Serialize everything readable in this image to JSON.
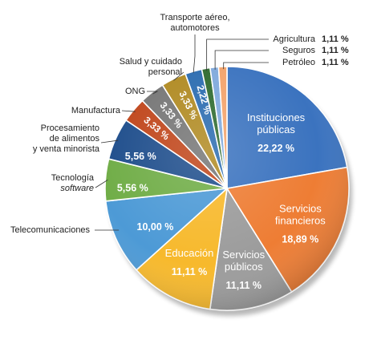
{
  "chart_data": {
    "type": "pie",
    "title": "",
    "slices": [
      {
        "label": "Instituciones públicas",
        "value_label": "22,22 %",
        "value": 22.22,
        "color": "#3b73bf"
      },
      {
        "label": "Servicios financieros",
        "value_label": "18,89 %",
        "value": 18.89,
        "color": "#ee7d34"
      },
      {
        "label": "Servicios públicos",
        "value_label": "11,11 %",
        "value": 11.11,
        "color": "#9c9c9c"
      },
      {
        "label": "Educación",
        "value_label": "11,11 %",
        "value": 11.11,
        "color": "#f7b92c"
      },
      {
        "label": "Telecomunicaciones",
        "value_label": "10,00 %",
        "value": 10.0,
        "color": "#4d9ad6"
      },
      {
        "label": "Tecnología",
        "label_italic": "software",
        "value_label": "5,56 %",
        "value": 5.56,
        "color": "#70ad47"
      },
      {
        "label": "Procesamiento de alimentos y venta minorista",
        "label_lines": [
          "Procesamiento",
          "de alimentos",
          "y venta minorista"
        ],
        "value_label": "5,56 %",
        "value": 5.56,
        "color": "#1f4e8c"
      },
      {
        "label": "Manufactura",
        "value_label": "3,33 %",
        "value": 3.33,
        "color": "#c0461b"
      },
      {
        "label": "ONG",
        "value_label": "3,33 %",
        "value": 3.33,
        "color": "#767676"
      },
      {
        "label": "Salud y cuidado personal",
        "label_lines": [
          "Salud y cuidado",
          "personal"
        ],
        "value_label": "3,33 %",
        "value": 3.33,
        "color": "#b08a22"
      },
      {
        "label": "Transporte aéreo, automotores",
        "label_lines": [
          "Transporte aéreo,",
          "automotores"
        ],
        "value_label": "2,22 %",
        "value": 2.22,
        "color": "#2b6cb0"
      },
      {
        "label": "Agricultura",
        "value_label": "1,11 %",
        "value": 1.11,
        "color": "#2f6b2f"
      },
      {
        "label": "Seguros",
        "value_label": "1,11 %",
        "value": 1.11,
        "color": "#7fa9dc"
      },
      {
        "label": "Petróleo",
        "value_label": "1,11 %",
        "value": 1.11,
        "color": "#f3a36b"
      }
    ]
  }
}
